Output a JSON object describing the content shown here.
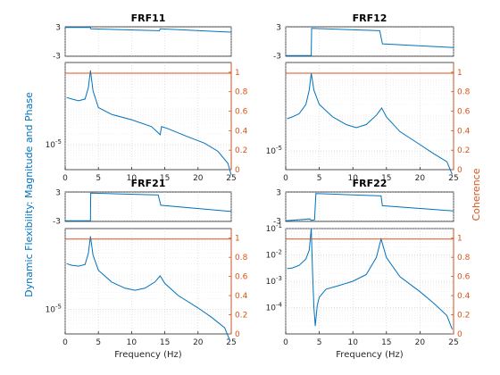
{
  "figure": {
    "ylabel_left": "Dynamic Flexibility: Magnitude and Phase",
    "ylabel_right": "Coherence",
    "colors": {
      "response": "#0072bd",
      "coherence": "#d95319",
      "axes": "#262626",
      "grid": "#c8c8c8"
    }
  },
  "chart_data": [
    {
      "type": "line",
      "title": "FRF11",
      "xlabel": "",
      "xlim": [
        0,
        25
      ],
      "xticks": [
        "0",
        "5",
        "10",
        "15",
        "20",
        "25"
      ],
      "phase": {
        "ylim": [
          -3.14,
          3.14
        ],
        "yticks": [
          "-3",
          "3"
        ],
        "x": [
          0,
          3.8,
          3.85,
          14.2,
          14.3,
          25
        ],
        "y": [
          3.0,
          3.0,
          2.7,
          2.3,
          2.7,
          2.0
        ]
      },
      "magnitude": {
        "scale": "log",
        "ylim": [
          2e-06,
          0.002
        ],
        "yticks": [
          "10^-5"
        ],
        "x": [
          0.2,
          1,
          2,
          3,
          3.5,
          3.8,
          4.2,
          5,
          7,
          10,
          13,
          14.3,
          14.5,
          15.5,
          18,
          21,
          23,
          24.5,
          25
        ],
        "y": [
          0.00021,
          0.00019,
          0.00017,
          0.00019,
          0.0004,
          0.0012,
          0.00032,
          0.00011,
          7e-05,
          5e-05,
          3.2e-05,
          1.9e-05,
          3.2e-05,
          2.8e-05,
          1.8e-05,
          1.1e-05,
          6.5e-06,
          3e-06,
          1.4e-06
        ]
      },
      "coherence": {
        "ylim": [
          0,
          1.1
        ],
        "yticks": [
          "0",
          "0.2",
          "0.4",
          "0.6",
          "0.8",
          "1"
        ],
        "x": [
          0,
          25
        ],
        "y": [
          0.99,
          0.99
        ]
      }
    },
    {
      "type": "line",
      "title": "FRF12",
      "xlabel": "",
      "xlim": [
        0,
        25
      ],
      "xticks": [
        "0",
        "5",
        "10",
        "15",
        "20",
        "25"
      ],
      "phase": {
        "ylim": [
          -3.14,
          3.14
        ],
        "yticks": [
          "-3",
          "3"
        ],
        "x": [
          0,
          3.8,
          3.85,
          14.0,
          14.4,
          25
        ],
        "y": [
          -3.0,
          -3.0,
          2.8,
          2.3,
          -0.5,
          -1.3
        ]
      },
      "magnitude": {
        "scale": "log",
        "ylim": [
          3e-06,
          0.003
        ],
        "yticks": [
          "10^-5"
        ],
        "x": [
          0.2,
          1,
          2,
          3,
          3.5,
          3.8,
          4.2,
          5,
          7,
          9,
          10.5,
          12,
          13.5,
          14.3,
          15,
          17,
          20,
          22,
          24,
          24.8
        ],
        "y": [
          8e-05,
          9e-05,
          0.00011,
          0.0002,
          0.0005,
          0.0015,
          0.0005,
          0.0002,
          9e-05,
          5.5e-05,
          4.5e-05,
          5.5e-05,
          0.0001,
          0.00016,
          9e-05,
          3.5e-05,
          1.5e-05,
          8.5e-06,
          5e-06,
          2.2e-06
        ]
      },
      "coherence": {
        "ylim": [
          0,
          1.1
        ],
        "yticks": [
          "0",
          "0.2",
          "0.4",
          "0.6",
          "0.8",
          "1"
        ],
        "x": [
          0,
          25
        ],
        "y": [
          0.99,
          0.99
        ]
      }
    },
    {
      "type": "line",
      "title": "FRF21",
      "xlabel": "Frequency (Hz)",
      "xlim": [
        0,
        25
      ],
      "xticks": [
        "0",
        "5",
        "10",
        "15",
        "20",
        "25"
      ],
      "phase": {
        "ylim": [
          -3.14,
          3.14
        ],
        "yticks": [
          "-3",
          "3"
        ],
        "x": [
          0,
          3.8,
          3.85,
          14.0,
          14.4,
          25
        ],
        "y": [
          -3.0,
          -3.0,
          2.9,
          2.5,
          0.3,
          -1.0
        ]
      },
      "magnitude": {
        "scale": "log",
        "ylim": [
          2e-06,
          0.002
        ],
        "yticks": [
          "10^-5"
        ],
        "x": [
          0.2,
          1,
          2,
          3,
          3.5,
          3.8,
          4.2,
          5,
          7,
          9,
          10.5,
          12,
          13.5,
          14.3,
          15,
          17,
          20,
          22,
          24,
          24.8
        ],
        "y": [
          0.0002,
          0.00018,
          0.00017,
          0.00019,
          0.0004,
          0.0012,
          0.00035,
          0.00013,
          6e-05,
          4e-05,
          3.5e-05,
          4e-05,
          6e-05,
          9e-05,
          5.5e-05,
          2.5e-05,
          1.1e-05,
          6e-06,
          3e-06,
          1.3e-06
        ]
      },
      "coherence": {
        "ylim": [
          0,
          1.1
        ],
        "yticks": [
          "0",
          "0.2",
          "0.4",
          "0.6",
          "0.8",
          "1"
        ],
        "x": [
          0,
          25
        ],
        "y": [
          0.99,
          0.99
        ]
      }
    },
    {
      "type": "line",
      "title": "FRF22",
      "xlabel": "Frequency (Hz)",
      "xlim": [
        0,
        25
      ],
      "xticks": [
        "0",
        "5",
        "10",
        "15",
        "20",
        "25"
      ],
      "phase": {
        "ylim": [
          -3.14,
          3.14
        ],
        "yticks": [
          "-3",
          "3"
        ],
        "x": [
          0,
          3.6,
          3.8,
          4.3,
          4.5,
          14.2,
          14.4,
          25
        ],
        "y": [
          -3.0,
          -2.6,
          -2.9,
          -2.8,
          2.8,
          2.3,
          0.2,
          -0.9
        ]
      },
      "magnitude": {
        "scale": "log",
        "ylim": [
          1e-05,
          0.1
        ],
        "yticks": [
          "10^-4",
          "10^-3",
          "10^-2",
          "10^-1"
        ],
        "x": [
          0.2,
          1,
          2,
          3,
          3.5,
          3.8,
          4.0,
          4.2,
          4.4,
          4.7,
          5,
          6,
          8,
          10,
          12,
          13.5,
          14.2,
          15,
          17,
          20,
          22,
          24,
          24.8
        ],
        "y": [
          0.003,
          0.0032,
          0.004,
          0.007,
          0.015,
          0.1,
          0.002,
          0.0001,
          2e-05,
          0.00012,
          0.00025,
          0.0005,
          0.0007,
          0.001,
          0.0018,
          0.008,
          0.04,
          0.008,
          0.0015,
          0.0004,
          0.00015,
          5e-05,
          1.5e-05
        ]
      },
      "coherence": {
        "ylim": [
          0,
          1.1
        ],
        "yticks": [
          "0",
          "0.2",
          "0.4",
          "0.6",
          "0.8",
          "1"
        ],
        "x": [
          0,
          25
        ],
        "y": [
          0.99,
          0.99
        ]
      }
    }
  ]
}
